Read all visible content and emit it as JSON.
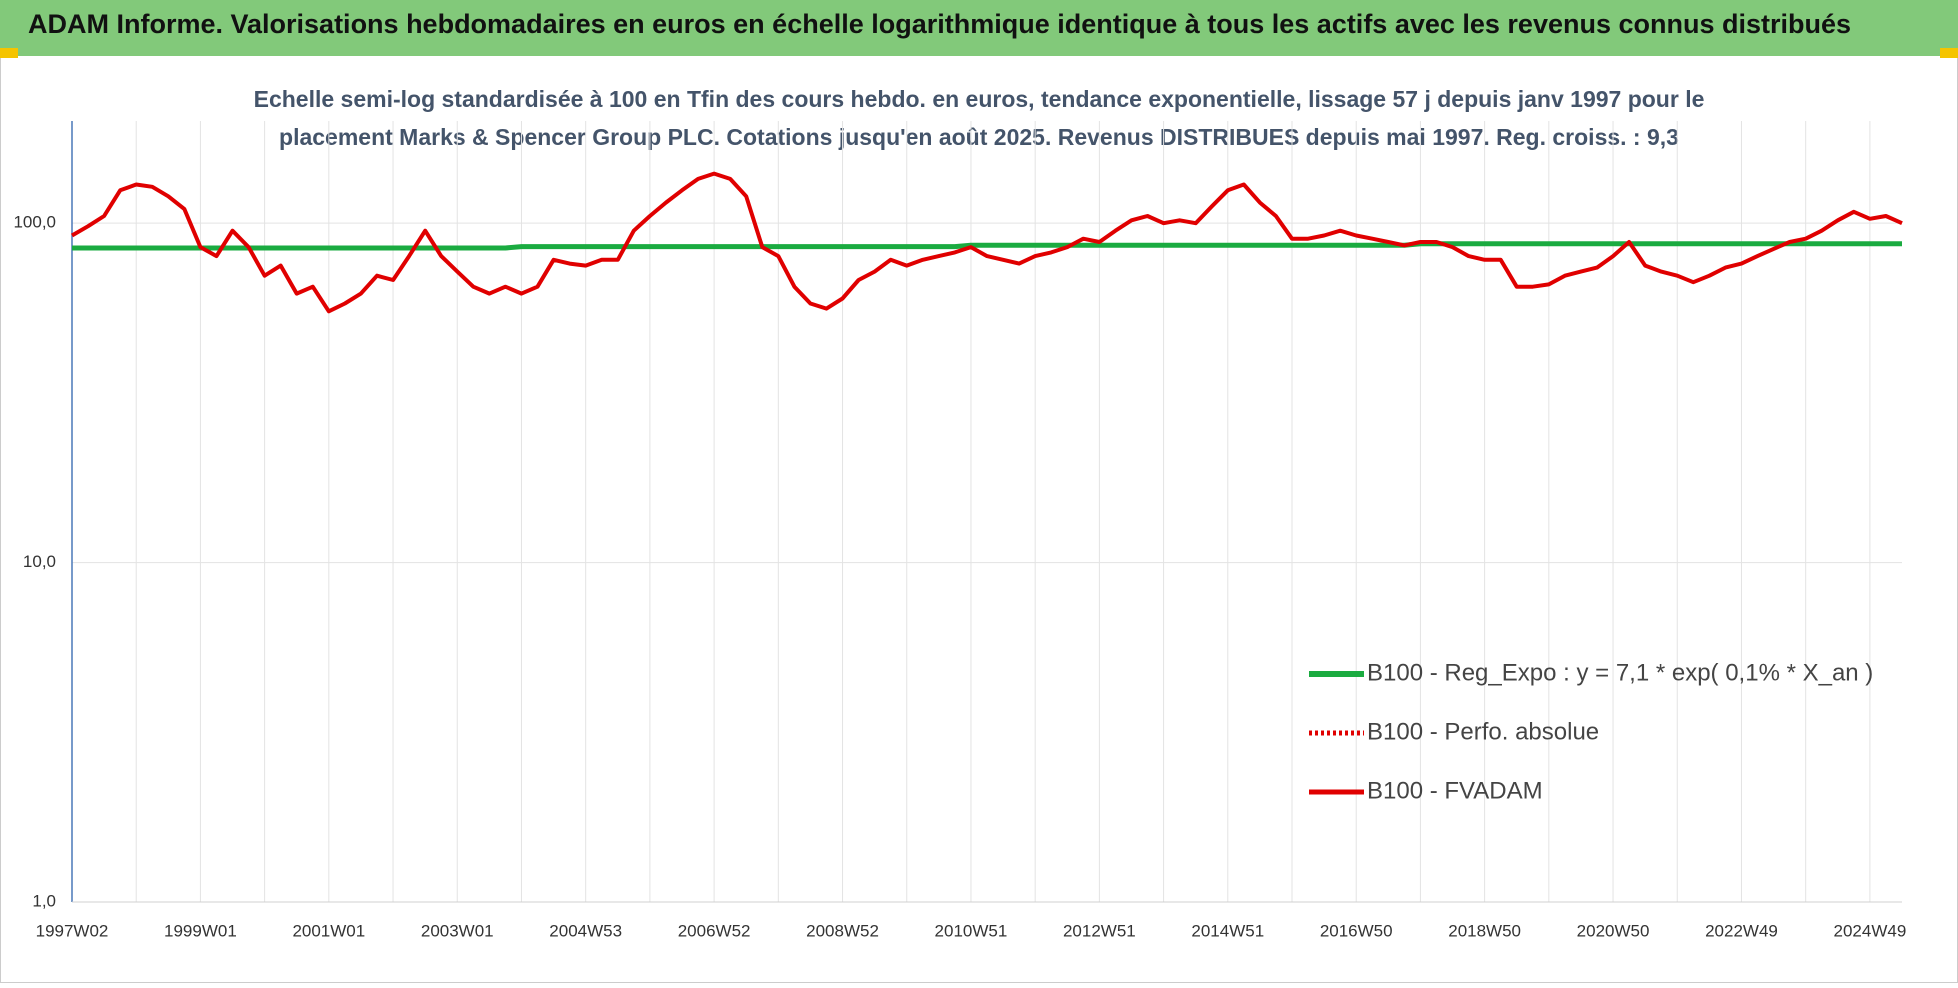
{
  "chart_data": {
    "type": "line",
    "header": "ADAM Informe. Valorisations hebdomadaires en euros en échelle logarithmique identique à tous les actifs avec les revenus connus distribués",
    "title": [
      "Echelle semi-log standardisée à 100 en Tfin des cours hebdo. en euros, tendance exponentielle, lissage 57 j depuis janv 1997 pour le",
      "placement Marks & Spencer Group PLC. Cotations jusqu'en août 2025. Revenus DISTRIBUES depuis mai 1997. Reg. croiss. : 9,3"
    ],
    "log_scale": true,
    "grid": true,
    "legend": "lower right",
    "ylim": [
      1,
      200
    ],
    "yticks": [
      {
        "value": 1,
        "label": "1,0"
      },
      {
        "value": 10,
        "label": "10,0"
      },
      {
        "value": 100,
        "label": "100,0"
      }
    ],
    "categories": [
      "1997W02",
      null,
      null,
      null,
      null,
      null,
      null,
      null,
      "1999W01",
      null,
      null,
      null,
      null,
      null,
      null,
      null,
      "2001W01",
      null,
      null,
      null,
      null,
      null,
      null,
      null,
      "2003W01",
      null,
      null,
      null,
      null,
      null,
      null,
      null,
      "2004W53",
      null,
      null,
      null,
      null,
      null,
      null,
      null,
      "2006W52",
      null,
      null,
      null,
      null,
      null,
      null,
      null,
      "2008W52",
      null,
      null,
      null,
      null,
      null,
      null,
      null,
      "2010W51",
      null,
      null,
      null,
      null,
      null,
      null,
      null,
      "2012W51",
      null,
      null,
      null,
      null,
      null,
      null,
      null,
      "2014W51",
      null,
      null,
      null,
      null,
      null,
      null,
      null,
      "2016W50",
      null,
      null,
      null,
      null,
      null,
      null,
      null,
      "2018W50",
      null,
      null,
      null,
      null,
      null,
      null,
      null,
      "2020W50",
      null,
      null,
      null,
      null,
      null,
      null,
      null,
      "2022W49",
      null,
      null,
      null,
      null,
      null,
      null,
      null,
      "2024W49",
      null,
      null
    ],
    "series": [
      {
        "name": "B100 - Reg_Expo : y = 7,1 * exp( 0,1% *  X_an )",
        "color": "#1aab40",
        "width": 5,
        "values": [
          84.5,
          84.5,
          84.5,
          84.5,
          84.5,
          84.5,
          84.5,
          84.5,
          84.5,
          84.5,
          84.5,
          84.5,
          84.5,
          84.5,
          84.5,
          84.5,
          84.5,
          84.5,
          84.5,
          84.5,
          84.5,
          84.5,
          84.5,
          84.5,
          84.5,
          84.5,
          84.5,
          84.5,
          85.3,
          85.3,
          85.3,
          85.3,
          85.3,
          85.3,
          85.3,
          85.3,
          85.3,
          85.3,
          85.3,
          85.3,
          85.3,
          85.3,
          85.3,
          85.3,
          85.3,
          85.3,
          85.3,
          85.3,
          85.3,
          85.3,
          85.3,
          85.3,
          85.3,
          85.3,
          85.3,
          85.3,
          86.1,
          86.1,
          86.1,
          86.1,
          86.1,
          86.1,
          86.1,
          86.1,
          86.1,
          86.1,
          86.1,
          86.1,
          86.1,
          86.1,
          86.1,
          86.1,
          86.1,
          86.1,
          86.1,
          86.1,
          86.1,
          86.1,
          86.1,
          86.1,
          86.1,
          86.1,
          86.1,
          86.1,
          87,
          87,
          87,
          87,
          87,
          87,
          87,
          87,
          87,
          87,
          87,
          87,
          87,
          87,
          87,
          87,
          87,
          87,
          87,
          87,
          87,
          87,
          87,
          87,
          87,
          87,
          87,
          87,
          87,
          87,
          87
        ]
      },
      {
        "name": "B100 - Perfo. absolue",
        "color": "#e00000",
        "dash": "dotted",
        "width": 4
      },
      {
        "name": "B100 - FVADAM",
        "color": "#e00000",
        "width": 4,
        "values": [
          92,
          98,
          105,
          125,
          130,
          128,
          120,
          110,
          85,
          80,
          95,
          85,
          70,
          75,
          62,
          65,
          55,
          58,
          62,
          70,
          68,
          80,
          95,
          80,
          72,
          65,
          62,
          65,
          62,
          65,
          78,
          76,
          75,
          78,
          78,
          95,
          105,
          115,
          125,
          135,
          140,
          135,
          120,
          85,
          80,
          65,
          58,
          56,
          60,
          68,
          72,
          78,
          75,
          78,
          80,
          82,
          85,
          80,
          78,
          76,
          80,
          82,
          85,
          90,
          88,
          95,
          102,
          105,
          100,
          102,
          100,
          112,
          125,
          130,
          115,
          105,
          90,
          90,
          92,
          95,
          92,
          90,
          88,
          86,
          88,
          88,
          85,
          80,
          78,
          78,
          65,
          65,
          66,
          70,
          72,
          74,
          80,
          88,
          75,
          72,
          70,
          67,
          70,
          74,
          76,
          80,
          84,
          88,
          90,
          95,
          102,
          108,
          103,
          105,
          100
        ]
      }
    ]
  }
}
